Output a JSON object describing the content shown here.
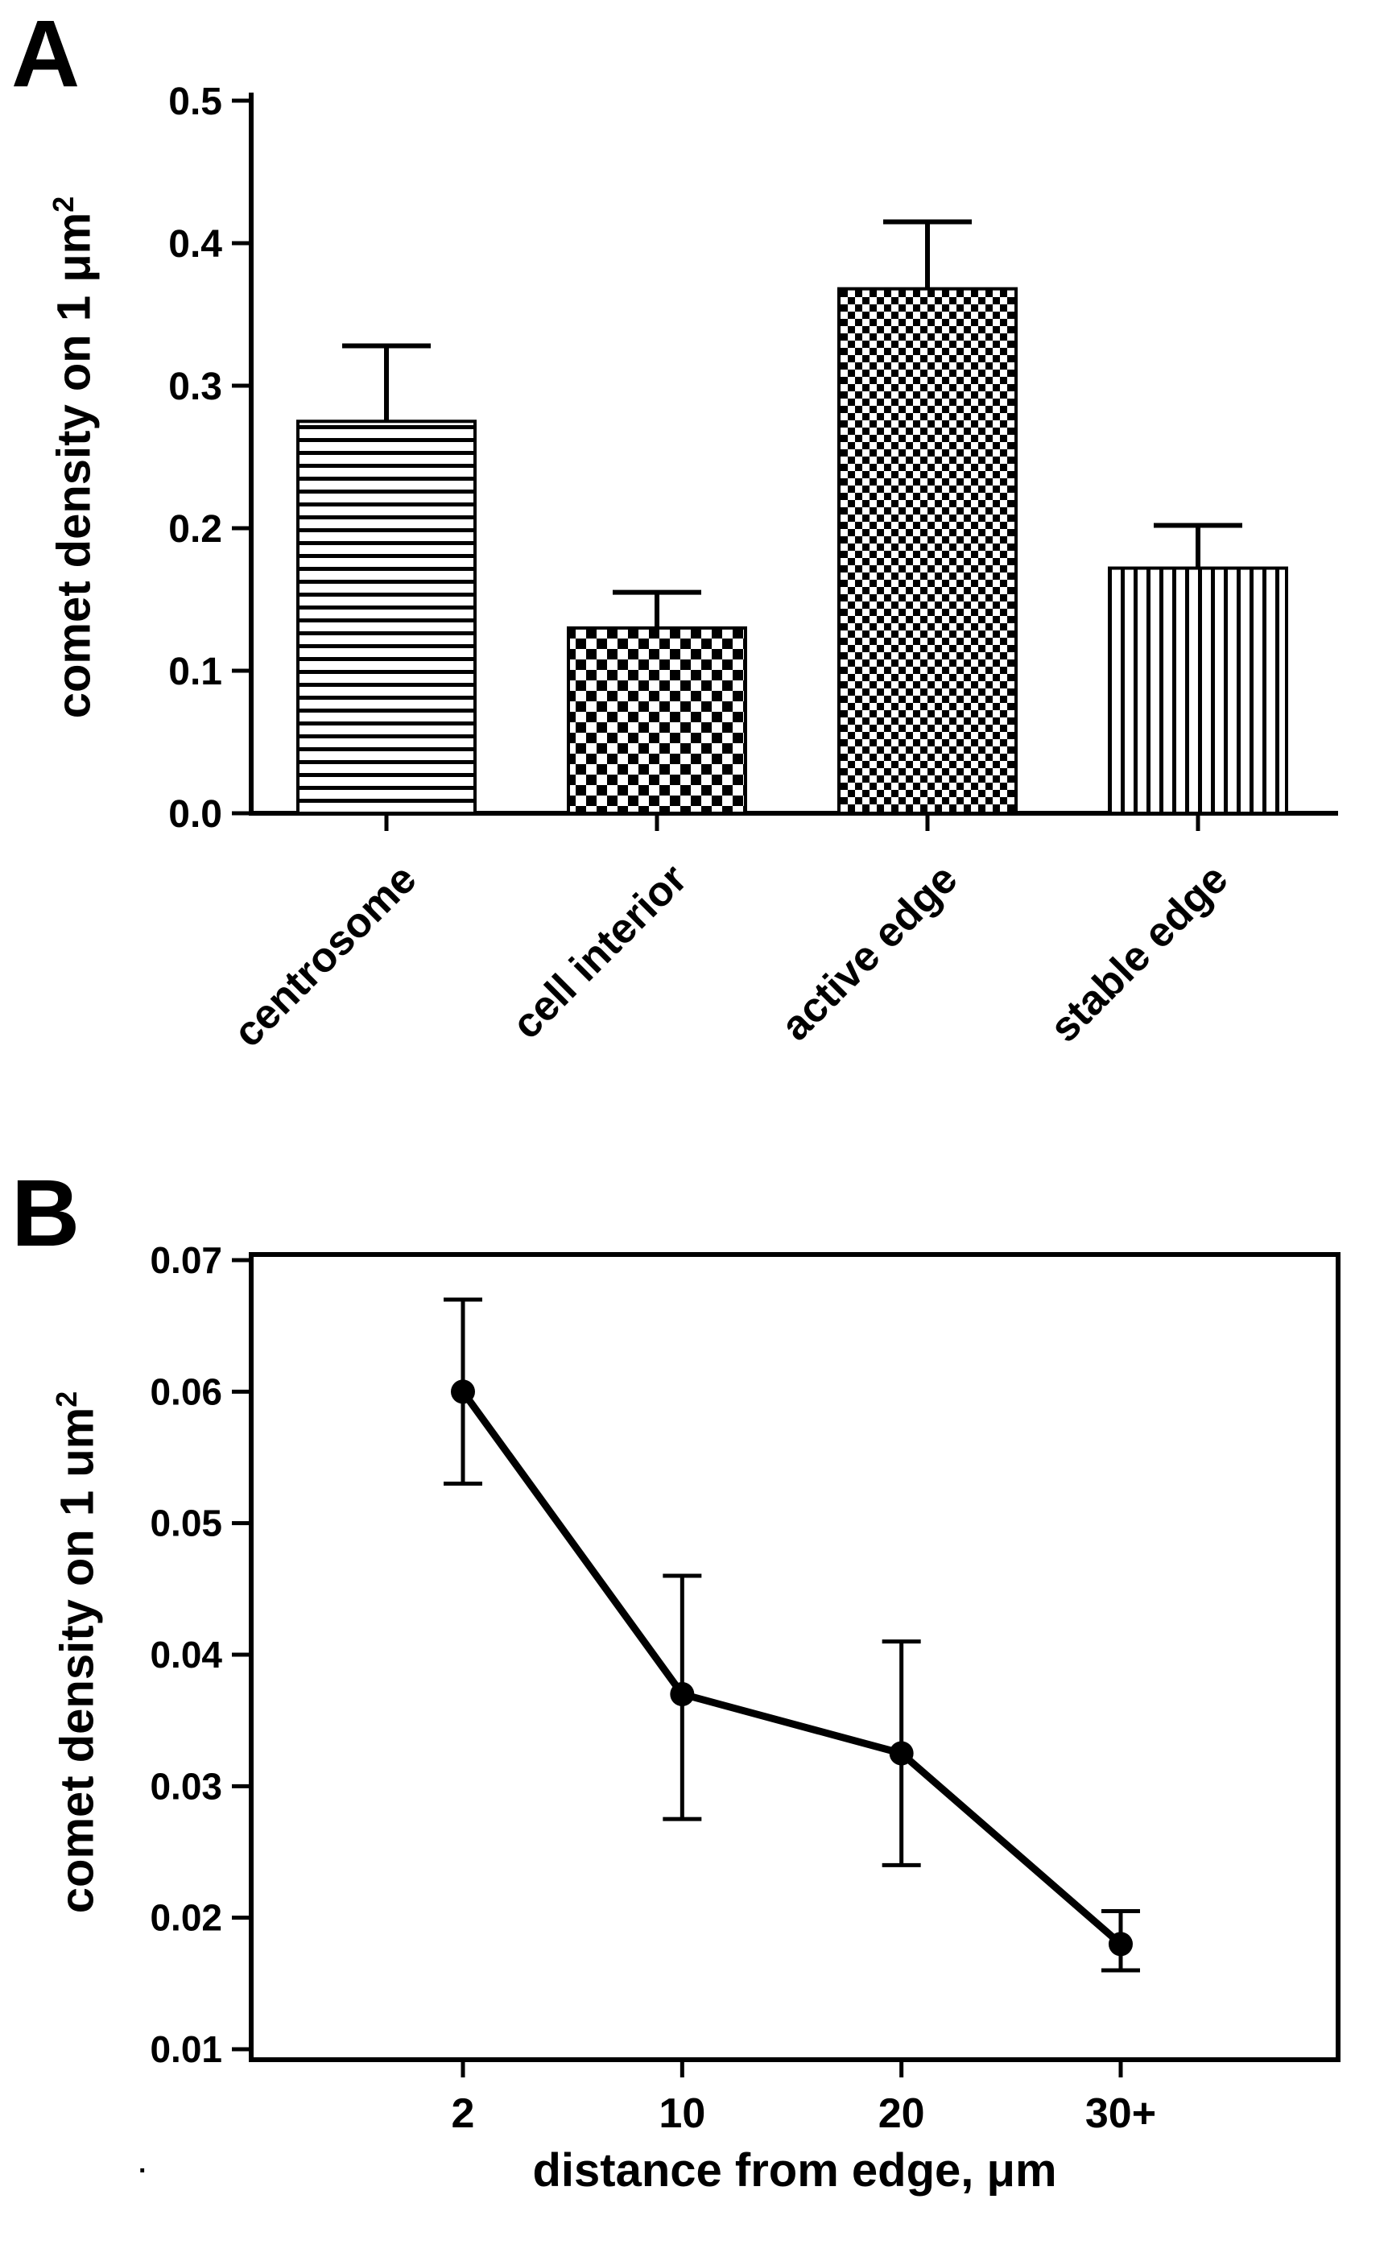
{
  "figure": {
    "background": "#ffffff",
    "foreground": "#000000",
    "stray_mark": "."
  },
  "chart_data": [
    {
      "panel": "A",
      "type": "bar",
      "title": "",
      "ylabel": "comet density on 1 μm²",
      "ylabel_base": "comet density on 1 μm",
      "ylabel_sup": "2",
      "xlabel": "",
      "categories": [
        "centrosome",
        "cell interior",
        "active edge",
        "stable edge"
      ],
      "values": [
        0.275,
        0.13,
        0.368,
        0.172
      ],
      "errors_plus": [
        0.053,
        0.025,
        0.047,
        0.03
      ],
      "bar_fill_patterns": [
        "horizontal-stripes",
        "checkerboard-coarse",
        "checkerboard-fine",
        "vertical-stripes"
      ],
      "bar_fill_color": "#ffffff",
      "bar_outline_color": "#000000",
      "ylim": [
        0.0,
        0.5
      ],
      "yticks": [
        0.0,
        0.1,
        0.2,
        0.3,
        0.4,
        0.5
      ],
      "ytick_labels": [
        "0.0",
        "0.1",
        "0.2",
        "0.3",
        "0.4",
        "0.5"
      ],
      "grid": false,
      "legend": false
    },
    {
      "panel": "B",
      "type": "line",
      "title": "",
      "ylabel": "comet density on 1 um²",
      "ylabel_base": "comet density on 1 um",
      "ylabel_sup": "2",
      "xlabel": "distance from edge, μm",
      "categories": [
        "2",
        "10",
        "20",
        "30+"
      ],
      "values": [
        0.06,
        0.037,
        0.0325,
        0.018
      ],
      "errors_plus": [
        0.007,
        0.009,
        0.0085,
        0.0025
      ],
      "errors_minus": [
        0.007,
        0.0095,
        0.0085,
        0.002
      ],
      "marker": "filled-circle",
      "line_color": "#000000",
      "ylim": [
        0.01,
        0.07
      ],
      "yticks": [
        0.01,
        0.02,
        0.03,
        0.04,
        0.05,
        0.06,
        0.07
      ],
      "ytick_labels": [
        "0.01",
        "0.02",
        "0.03",
        "0.04",
        "0.05",
        "0.06",
        "0.07"
      ],
      "grid": false,
      "legend": false,
      "plot_frame": "box"
    }
  ]
}
